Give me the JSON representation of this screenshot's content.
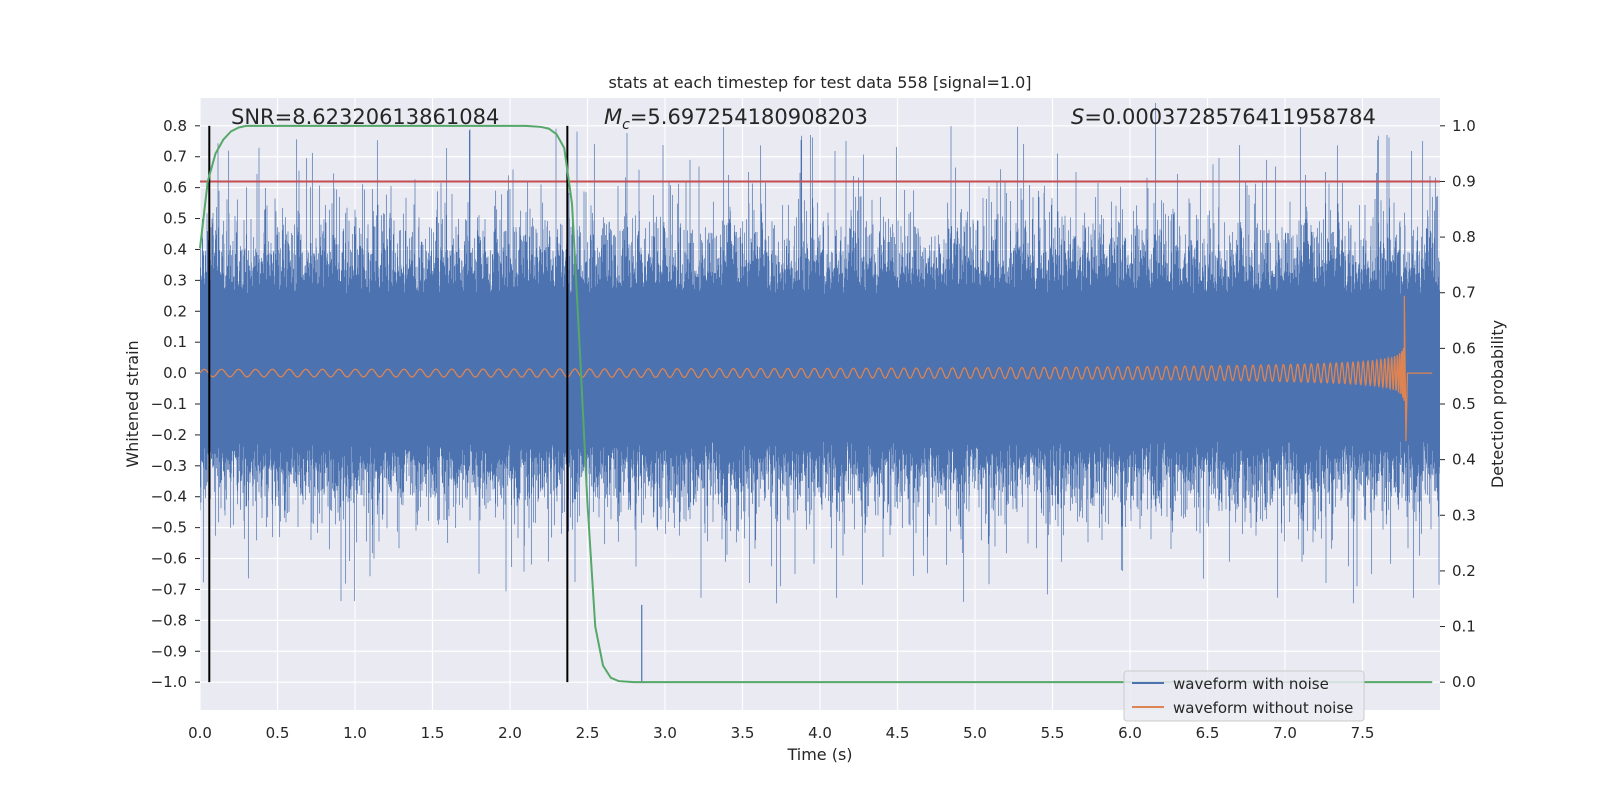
{
  "chart_data": {
    "type": "line",
    "title": "stats at each timestep for test data 558 [signal=1.0]",
    "xlabel": "Time (s)",
    "ylabel": "Whitened strain",
    "y2label": "Detection probability",
    "xlim": [
      0.0,
      8.0
    ],
    "ylim": [
      -1.09,
      0.89
    ],
    "y2lim": [
      -0.05,
      1.05
    ],
    "xticks": [
      0.0,
      0.5,
      1.0,
      1.5,
      2.0,
      2.5,
      3.0,
      3.5,
      4.0,
      4.5,
      5.0,
      5.5,
      6.0,
      6.5,
      7.0,
      7.5
    ],
    "xtick_labels": [
      "0.0",
      "0.5",
      "1.0",
      "1.5",
      "2.0",
      "2.5",
      "3.0",
      "3.5",
      "4.0",
      "4.5",
      "5.0",
      "5.5",
      "6.0",
      "6.5",
      "7.0",
      "7.5"
    ],
    "yticks": [
      0.8,
      0.7,
      0.6,
      0.5,
      0.4,
      0.3,
      0.2,
      0.1,
      0.0,
      -0.1,
      -0.2,
      -0.3,
      -0.4,
      -0.5,
      -0.6,
      -0.7,
      -0.8,
      -0.9,
      -1.0
    ],
    "ytick_labels": [
      "0.8",
      "0.7",
      "0.6",
      "0.5",
      "0.4",
      "0.3",
      "0.2",
      "0.1",
      "0.0",
      "−0.1",
      "−0.2",
      "−0.3",
      "−0.4",
      "−0.5",
      "−0.6",
      "−0.7",
      "−0.8",
      "−0.9",
      "−1.0"
    ],
    "y2ticks": [
      1.0,
      0.9,
      0.8,
      0.7,
      0.6,
      0.5,
      0.4,
      0.3,
      0.2,
      0.1,
      0.0
    ],
    "y2tick_labels": [
      "1.0",
      "0.9",
      "0.8",
      "0.7",
      "0.6",
      "0.5",
      "0.4",
      "0.3",
      "0.2",
      "0.1",
      "0.0"
    ],
    "annotations": {
      "snr": "SNR=8.62320613861084",
      "mc_symbol": "M",
      "mc_sub": "c",
      "mc_value": "=5.697254180908203",
      "s_symbol": "S",
      "s_value": "=0.0003728576411958784"
    },
    "vertical_lines": [
      0.06,
      2.37
    ],
    "threshold_y2": 0.9,
    "noise_band": {
      "low": -0.22,
      "high": 0.25
    },
    "chirp": {
      "t_start": 0.0,
      "t_merge": 7.77,
      "t_end": 7.95,
      "amp_start": 0.015,
      "amp_peak": 0.25,
      "amp_trough": -0.22
    },
    "series": [
      {
        "name": "waveform with noise",
        "color": "#4c72b0",
        "kind": "dense noisy strain, peaks ~±0.8"
      },
      {
        "name": "waveform without noise",
        "color": "#dd8452",
        "kind": "inspiral chirp"
      },
      {
        "name": "detection probability",
        "color": "#55a868",
        "axis": "right",
        "x": [
          0.0,
          0.05,
          0.1,
          0.15,
          0.2,
          0.25,
          0.3,
          0.4,
          0.6,
          1.0,
          1.5,
          2.0,
          2.1,
          2.2,
          2.25,
          2.3,
          2.35,
          2.4,
          2.45,
          2.5,
          2.55,
          2.6,
          2.65,
          2.7,
          2.8,
          3.0,
          4.0,
          5.0,
          6.0,
          7.0,
          7.95
        ],
        "values": [
          0.78,
          0.9,
          0.95,
          0.975,
          0.99,
          0.997,
          1.0,
          1.0,
          1.0,
          1.0,
          1.0,
          1.0,
          1.0,
          0.998,
          0.995,
          0.985,
          0.96,
          0.86,
          0.6,
          0.32,
          0.1,
          0.03,
          0.008,
          0.002,
          0.0,
          0.0,
          0.0,
          0.0,
          0.0,
          0.0,
          0.0
        ]
      },
      {
        "name": "threshold",
        "color": "#c44e52",
        "axis": "right",
        "values": [
          0.9
        ]
      }
    ],
    "legend": {
      "position": "bottom-right",
      "entries": [
        "waveform with noise",
        "waveform without noise"
      ]
    }
  }
}
